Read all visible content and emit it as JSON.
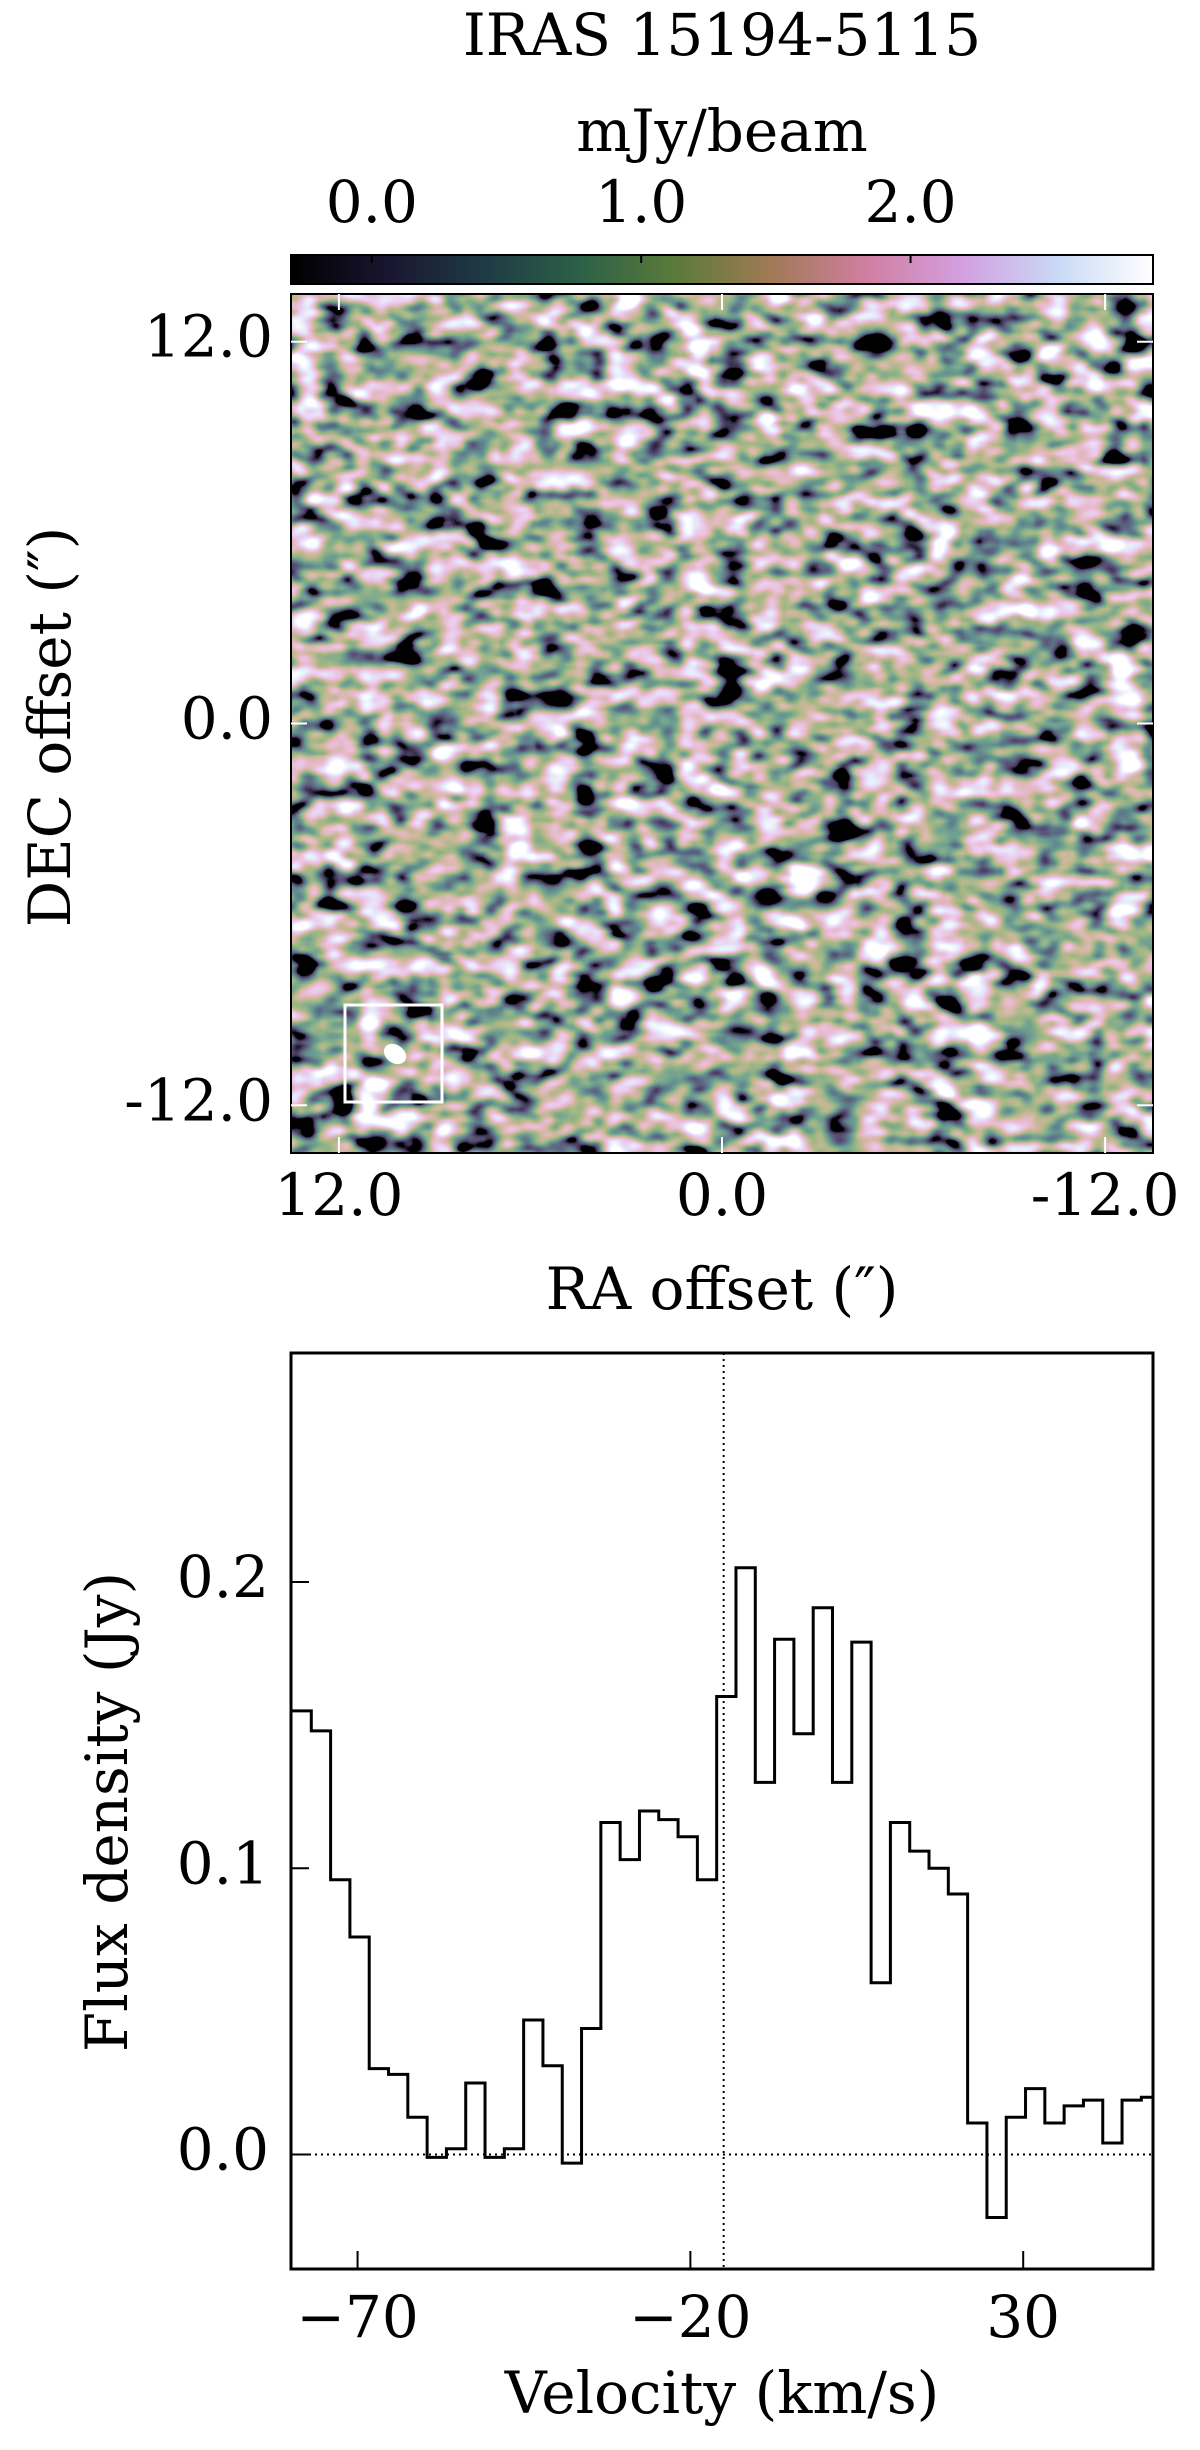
{
  "chart_data": [
    {
      "type": "image",
      "title": "IRAS 15194-5115",
      "colorbar_label": "mJy/beam",
      "clim": [
        -0.3,
        2.9
      ],
      "cticks": [
        {
          "value": 0,
          "label": "0.0"
        },
        {
          "value": 1,
          "label": "1.0"
        },
        {
          "value": 2,
          "label": "2.0"
        }
      ],
      "colormap": [
        "#000000",
        "#1a1530",
        "#1e3a44",
        "#2b6048",
        "#5a7a3a",
        "#a07a55",
        "#d07ea0",
        "#d39fe0",
        "#c9d9f5",
        "#ffffff"
      ],
      "x_label": "RA offset (″)",
      "y_label": "DEC offset (″)",
      "xlim": [
        13.5,
        -13.5
      ],
      "ylim": [
        -13.5,
        13.5
      ],
      "xticks": [
        {
          "value": 12,
          "label": "12.0"
        },
        {
          "value": 0,
          "label": "0.0"
        },
        {
          "value": -12,
          "label": "-12.0"
        }
      ],
      "yticks": [
        {
          "value": 12,
          "label": "12.0"
        },
        {
          "value": 0,
          "label": "0.0"
        },
        {
          "value": -12,
          "label": "-12.0"
        }
      ]
    },
    {
      "type": "line",
      "drawstyle": "steps-mid",
      "x_label": "Velocity (km/s)",
      "y_label": "Flux density (Jy)",
      "xlim": [
        -80,
        49.5
      ],
      "ylim": [
        -0.04,
        0.28
      ],
      "xticks": [
        {
          "value": -70,
          "label": "−70"
        },
        {
          "value": -20,
          "label": "−20"
        },
        30
      ],
      "yticks": [
        {
          "value": 0,
          "label": "0.0"
        },
        {
          "value": 0.1,
          "label": "0.1"
        },
        {
          "value": 0.2,
          "label": "0.2"
        }
      ],
      "reference_lines": {
        "x": -15,
        "y": 0
      },
      "x": [
        -78.4,
        -75.5,
        -72.6,
        -69.7,
        -66.8,
        -63.9,
        -61.0,
        -58.1,
        -55.2,
        -52.3,
        -49.4,
        -46.5,
        -43.6,
        -40.7,
        -37.8,
        -34.9,
        -32.0,
        -29.1,
        -26.2,
        -23.3,
        -20.4,
        -17.5,
        -14.6,
        -11.7,
        -8.8,
        -5.9,
        -3.0,
        -0.1,
        2.8,
        5.7,
        8.6,
        11.5,
        14.4,
        17.3,
        20.2,
        23.1,
        26.0,
        28.9,
        31.8,
        34.7,
        37.6,
        40.5,
        43.4,
        46.3,
        49.2
      ],
      "series": [
        {
          "color": "#000000",
          "values": [
            0.155,
            0.148,
            0.096,
            0.076,
            0.03,
            0.028,
            0.013,
            -0.001,
            0.002,
            0.025,
            -0.001,
            0.002,
            0.047,
            0.031,
            -0.003,
            0.044,
            0.116,
            0.103,
            0.12,
            0.117,
            0.111,
            0.096,
            0.16,
            0.205,
            0.13,
            0.18,
            0.147,
            0.191,
            0.13,
            0.179,
            0.06,
            0.116,
            0.106,
            0.1,
            0.091,
            0.011,
            -0.022,
            0.013,
            0.023,
            0.011,
            0.017,
            0.019,
            0.004,
            0.019,
            0.02
          ]
        }
      ]
    }
  ]
}
